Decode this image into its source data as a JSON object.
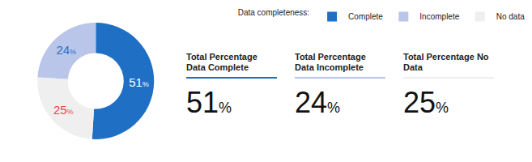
{
  "chart_data": {
    "type": "pie",
    "legend_title": "Data completeness:",
    "legend": "top-right",
    "categories": [
      "Complete",
      "Incomplete",
      "No data"
    ],
    "values": [
      51,
      24,
      25
    ],
    "value_labels": [
      "51%",
      "24%",
      "25%"
    ],
    "colors": [
      "#1f6fc5",
      "#b9c6ea",
      "#efefef"
    ],
    "data_labels": true
  },
  "summary": [
    {
      "label": "Total Percentage Data Complete",
      "value": "51%"
    },
    {
      "label": "Total Percentage Data Incomplete",
      "value": "24%"
    },
    {
      "label": "Total Percentage No Data",
      "value": "25%"
    }
  ]
}
